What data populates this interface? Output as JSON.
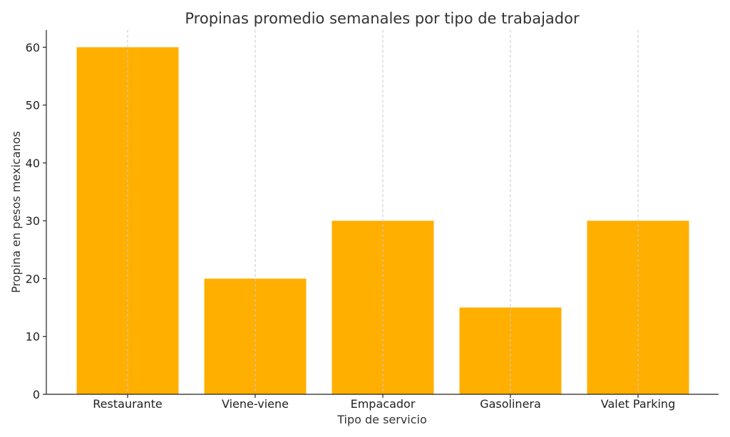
{
  "chart_data": {
    "type": "bar",
    "title": "Propinas promedio semanales por tipo de trabajador",
    "xlabel": "Tipo de servicio",
    "ylabel": "Propina en pesos mexicanos",
    "categories": [
      "Restaurante",
      "Viene-viene",
      "Empacador",
      "Gasolinera",
      "Valet Parking"
    ],
    "values": [
      60,
      20,
      30,
      15,
      30
    ],
    "ylim": [
      0,
      63
    ],
    "yticks": [
      0,
      10,
      20,
      30,
      40,
      50,
      60
    ],
    "bar_color": "#FFAF00",
    "grid": "vertical-dashed",
    "legend": "none"
  }
}
